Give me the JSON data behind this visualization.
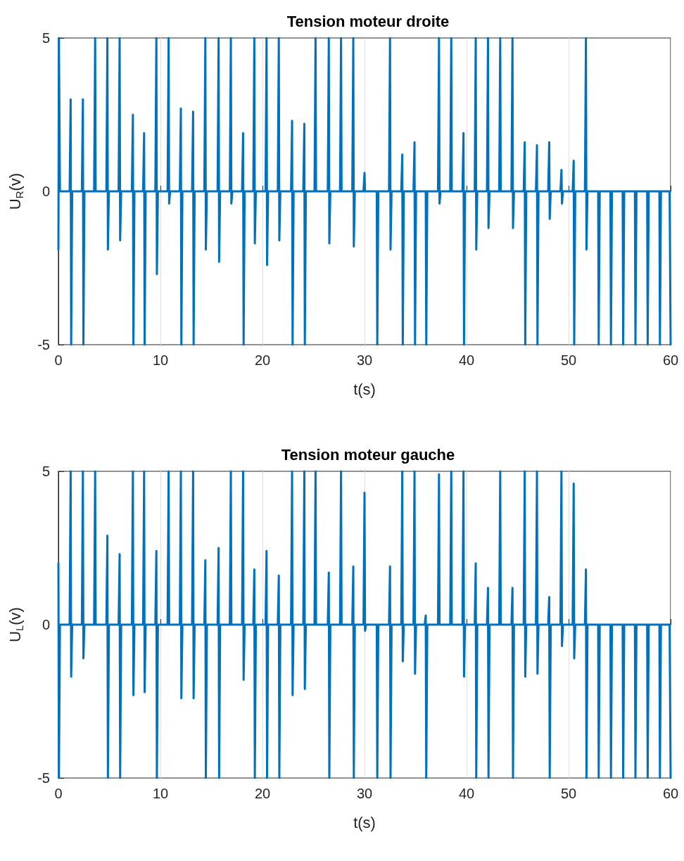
{
  "chart_data": [
    {
      "type": "line",
      "title": "Tension moteur droite",
      "xlabel": "t(s)",
      "ylabel": "U$_{R}$(v)",
      "xlim": [
        0,
        60
      ],
      "xticks": [
        0,
        10,
        20,
        30,
        40,
        50,
        60
      ],
      "ylim": [
        -5,
        5
      ],
      "yticks": [
        -5,
        0,
        5
      ],
      "grid": "x",
      "x": [
        0,
        0.05,
        0.15,
        1.1,
        1.2,
        1.25,
        1.35,
        2.3,
        2.4,
        2.45,
        2.55,
        3.5,
        3.6,
        3.65,
        3.75,
        4.7,
        4.8,
        4.85,
        4.95,
        5.9,
        6,
        6.05,
        6.15,
        7.2,
        7.3,
        7.35,
        7.45,
        8.3,
        8.4,
        8.45,
        8.55,
        9.5,
        9.6,
        9.65,
        9.75,
        10.7,
        10.8,
        10.85,
        10.95,
        11.9,
        12,
        12.05,
        12.15,
        13.1,
        13.2,
        13.25,
        13.35,
        14.3,
        14.4,
        14.45,
        14.55,
        15.6,
        15.7,
        15.75,
        15.85,
        16.8,
        16.9,
        16.95,
        17.05,
        18,
        18.1,
        18.15,
        18.25,
        19.1,
        19.2,
        19.25,
        19.35,
        20.3,
        20.4,
        20.45,
        20.55,
        21.5,
        21.6,
        21.65,
        21.75,
        22.8,
        22.9,
        22.95,
        23.05,
        24,
        24.1,
        24.15,
        24.25,
        25.1,
        25.2,
        25.25,
        25.35,
        26.4,
        26.5,
        26.55,
        26.65,
        27.6,
        27.7,
        27.75,
        27.85,
        28.8,
        28.9,
        28.95,
        29.05,
        29.9,
        30,
        30.05,
        30.15,
        31.1,
        31.2,
        31.25,
        31.35,
        32.4,
        32.5,
        32.55,
        32.65,
        33.6,
        33.7,
        33.75,
        33.85,
        34.8,
        34.9,
        34.95,
        35.05,
        35.9,
        36,
        36.05,
        36.15,
        37.2,
        37.3,
        37.35,
        37.45,
        38.4,
        38.5,
        38.55,
        38.65,
        39.6,
        39.7,
        39.75,
        39.85,
        40.8,
        40.9,
        40.95,
        41.05,
        42,
        42.1,
        42.15,
        42.25,
        43.2,
        43.3,
        43.35,
        43.45,
        44.4,
        44.5,
        44.55,
        44.65,
        45.6,
        45.7,
        45.75,
        45.85,
        46.8,
        46.9,
        46.95,
        47.05,
        48,
        48.1,
        48.15,
        48.25,
        49.2,
        49.3,
        49.35,
        49.45,
        50.4,
        50.5,
        50.55,
        50.65,
        51.6,
        51.7,
        51.75,
        51.85,
        52.8,
        52.9,
        52.95,
        53.05,
        54,
        54.1,
        54.15,
        54.25,
        55.2,
        55.3,
        55.35,
        55.45,
        56.4,
        56.5,
        56.55,
        56.65,
        57.6,
        57.7,
        57.75,
        57.85,
        58.8,
        58.9,
        58.95,
        59.05,
        59.9,
        60
      ],
      "series": [
        {
          "color": "#0072bd",
          "values": [
            -1.9,
            5,
            0,
            0,
            3,
            -5,
            0,
            0,
            3,
            -5,
            0,
            0,
            5,
            0,
            0,
            0,
            5,
            -1.9,
            0,
            0,
            5,
            -1.6,
            0,
            0,
            2.5,
            -5,
            0,
            0,
            1.9,
            -5,
            0,
            0,
            5,
            -2.7,
            0,
            0,
            5,
            -0.4,
            0,
            0,
            2.7,
            -5,
            0,
            0,
            2.6,
            -5,
            0,
            0,
            5,
            -1.9,
            0,
            0,
            5,
            -2.3,
            0,
            0,
            5,
            -0.4,
            0,
            0,
            1.9,
            -5,
            0,
            0,
            5,
            -1.7,
            0,
            0,
            5,
            -2.4,
            0,
            0,
            5,
            -1.6,
            0,
            0,
            2.3,
            -5,
            0,
            0,
            2.2,
            -5,
            0,
            0,
            5,
            0,
            0,
            0,
            5,
            -1.7,
            0,
            0,
            5,
            0,
            0,
            0,
            5,
            -1.8,
            0,
            0,
            0.6,
            0,
            0,
            0,
            0,
            -5,
            0,
            0,
            5,
            -1.9,
            0,
            0,
            1.2,
            -5,
            0,
            0,
            1.6,
            -5,
            0,
            0,
            0,
            -5,
            0,
            0,
            5,
            -0.4,
            0,
            0,
            5,
            0,
            0,
            0,
            1.9,
            -5,
            0,
            0,
            5,
            -1.9,
            0,
            0,
            5,
            -1.2,
            0,
            0,
            5,
            0,
            0,
            0,
            5,
            -1.2,
            0,
            0,
            1.6,
            -5,
            0,
            0,
            1.5,
            -5,
            0,
            0,
            1.6,
            -0.9,
            0,
            0,
            0.7,
            -0.4,
            0,
            0,
            1,
            -5,
            0,
            0,
            5,
            -1.9,
            0,
            0,
            0,
            -5,
            0,
            0,
            0,
            -5,
            0,
            0,
            0,
            -5,
            0,
            0,
            0,
            -5,
            0,
            0,
            0,
            -5,
            0,
            0,
            0,
            -5,
            0,
            0,
            -5
          ]
        }
      ]
    },
    {
      "type": "line",
      "title": "Tension moteur gauche",
      "xlabel": "t(s)",
      "ylabel": "U$_{L}$(v)",
      "xlim": [
        0,
        60
      ],
      "xticks": [
        0,
        10,
        20,
        30,
        40,
        50,
        60
      ],
      "ylim": [
        -5,
        5
      ],
      "yticks": [
        -5,
        0,
        5
      ],
      "grid": "x",
      "x": [
        0,
        0.05,
        0.15,
        1.1,
        1.2,
        1.25,
        1.35,
        2.3,
        2.4,
        2.45,
        2.55,
        3.5,
        3.6,
        3.65,
        3.75,
        4.7,
        4.8,
        4.85,
        4.95,
        5.9,
        6,
        6.05,
        6.15,
        7.2,
        7.3,
        7.35,
        7.45,
        8.3,
        8.4,
        8.45,
        8.55,
        9.5,
        9.6,
        9.65,
        9.75,
        10.7,
        10.8,
        10.85,
        10.95,
        11.9,
        12,
        12.05,
        12.15,
        13.1,
        13.2,
        13.25,
        13.35,
        14.3,
        14.4,
        14.45,
        14.55,
        15.6,
        15.7,
        15.75,
        15.85,
        16.8,
        16.9,
        16.95,
        17.05,
        18,
        18.1,
        18.15,
        18.25,
        19.1,
        19.2,
        19.25,
        19.35,
        20.3,
        20.4,
        20.45,
        20.55,
        21.5,
        21.6,
        21.65,
        21.75,
        22.8,
        22.9,
        22.95,
        23.05,
        24,
        24.1,
        24.15,
        24.25,
        25.1,
        25.2,
        25.25,
        25.35,
        26.4,
        26.5,
        26.55,
        26.65,
        27.6,
        27.7,
        27.75,
        27.85,
        28.8,
        28.9,
        28.95,
        29.05,
        29.9,
        30,
        30.05,
        30.15,
        31.1,
        31.2,
        31.25,
        31.35,
        32.4,
        32.5,
        32.55,
        32.65,
        33.6,
        33.7,
        33.75,
        33.85,
        34.8,
        34.9,
        34.95,
        35.05,
        35.9,
        36,
        36.05,
        36.15,
        37.2,
        37.3,
        37.35,
        37.45,
        38.4,
        38.5,
        38.55,
        38.65,
        39.6,
        39.7,
        39.75,
        39.85,
        40.8,
        40.9,
        40.95,
        41.05,
        42,
        42.1,
        42.15,
        42.25,
        43.2,
        43.3,
        43.35,
        43.45,
        44.4,
        44.5,
        44.55,
        44.65,
        45.6,
        45.7,
        45.75,
        45.85,
        46.8,
        46.9,
        46.95,
        47.05,
        48,
        48.1,
        48.15,
        48.25,
        49.2,
        49.3,
        49.35,
        49.45,
        50.4,
        50.5,
        50.55,
        50.65,
        51.6,
        51.7,
        51.75,
        51.85,
        52.8,
        52.9,
        52.95,
        53.05,
        54,
        54.1,
        54.15,
        54.25,
        55.2,
        55.3,
        55.35,
        55.45,
        56.4,
        56.5,
        56.55,
        56.65,
        57.6,
        57.7,
        57.75,
        57.85,
        58.8,
        58.9,
        58.95,
        59.05,
        59.9,
        60
      ],
      "series": [
        {
          "color": "#0072bd",
          "values": [
            2,
            -5,
            0,
            0,
            5,
            -1.7,
            0,
            0,
            5,
            -1.1,
            0,
            0,
            5,
            0,
            0,
            0,
            2.9,
            -5,
            0,
            0,
            2.3,
            -5,
            0,
            0,
            5,
            -2.3,
            0,
            0,
            5,
            -2.2,
            0,
            0,
            2.4,
            -5,
            0,
            0,
            5,
            0,
            0,
            0,
            5,
            -2.4,
            0,
            0,
            5,
            -2.4,
            0,
            0,
            2.1,
            -5,
            0,
            0,
            2.5,
            -5,
            0,
            0,
            5,
            0,
            0,
            0,
            5,
            -1.8,
            0,
            0,
            1.8,
            -5,
            0,
            0,
            2.4,
            -5,
            0,
            0,
            1.6,
            -5,
            0,
            0,
            5,
            -2.3,
            0,
            0,
            5,
            -2.1,
            0,
            0,
            5,
            0,
            0,
            0,
            1.7,
            -5,
            0,
            0,
            5,
            0,
            0,
            0,
            1.9,
            -5,
            0,
            0,
            4.3,
            -0.2,
            0,
            0,
            0,
            -5,
            0,
            0,
            1.9,
            -5,
            0,
            0,
            5,
            -1.2,
            0,
            0,
            5,
            -1.6,
            0,
            0,
            0.3,
            -5,
            0,
            0,
            4.9,
            0,
            0,
            0,
            5,
            0,
            0,
            0,
            5,
            -1.7,
            0,
            0,
            2,
            -5,
            0,
            0,
            1.2,
            -5,
            0,
            0,
            5,
            0,
            0,
            0,
            1.2,
            -5,
            0,
            0,
            5,
            -1.7,
            0,
            0,
            5,
            -1.6,
            0,
            0,
            0.9,
            -5,
            0,
            0,
            5,
            -0.7,
            0,
            0,
            4.6,
            -1.1,
            0,
            0,
            1.8,
            -5,
            0,
            0,
            0,
            -5,
            0,
            0,
            0,
            -5,
            0,
            0,
            0,
            -5,
            0,
            0,
            0,
            -5,
            0,
            0,
            0,
            -5,
            0,
            0,
            0,
            -5,
            0,
            0,
            -5
          ]
        }
      ]
    }
  ]
}
